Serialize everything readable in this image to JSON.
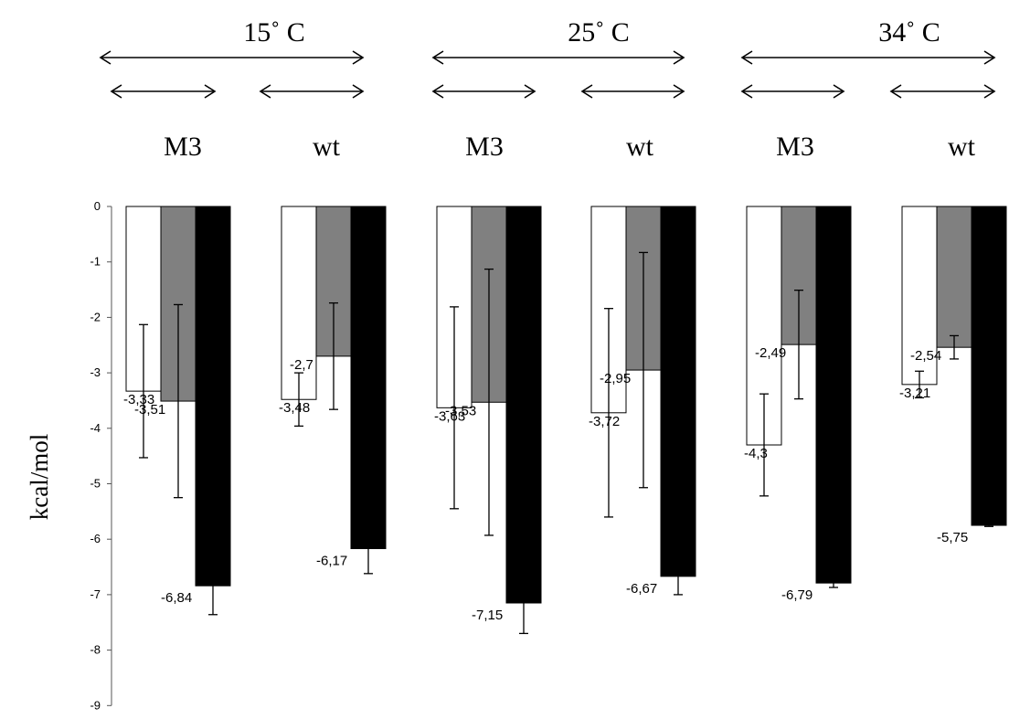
{
  "chart_data": {
    "type": "bar",
    "ylabel": "kcal/mol",
    "ylim": [
      -9,
      0
    ],
    "yticks": [
      "0",
      "-1",
      "-2",
      "-3",
      "-4",
      "-5",
      "-6",
      "-7",
      "-8",
      "-9"
    ],
    "grid": false,
    "temperature_groups": [
      {
        "label": "15˚ C",
        "subgroups": [
          "M3",
          "wt"
        ]
      },
      {
        "label": "25˚ C",
        "subgroups": [
          "M3",
          "wt"
        ]
      },
      {
        "label": "34˚ C",
        "subgroups": [
          "M3",
          "wt"
        ]
      }
    ],
    "categories": [
      "M3",
      "wt",
      "M3",
      "wt",
      "M3",
      "wt"
    ],
    "series": [
      {
        "color": "#ffffff",
        "values": [
          -3.33,
          -3.48,
          -3.63,
          -3.72,
          -4.3,
          -3.21
        ],
        "labels": [
          "-3,33",
          "-3,48",
          "-3,63",
          "-3,72",
          "-4,3",
          "-3,21"
        ],
        "error": [
          1.2,
          0.48,
          1.82,
          1.88,
          0.92,
          0.24
        ]
      },
      {
        "color": "#808080",
        "values": [
          -3.51,
          -2.7,
          -3.53,
          -2.95,
          -2.49,
          -2.54
        ],
        "labels": [
          "-3,51",
          "-2,7",
          "-3,53",
          "-2,95",
          "-2,49",
          "-2,54"
        ],
        "error": [
          1.74,
          0.96,
          2.4,
          2.12,
          0.98,
          0.21
        ]
      },
      {
        "color": "#000000",
        "values": [
          -6.84,
          -6.17,
          -7.15,
          -6.67,
          -6.79,
          -5.75
        ],
        "labels": [
          "-6,84",
          "-6,17",
          "-7,15",
          "-6,67",
          "-6,79",
          "-5,75"
        ],
        "error": [
          0.52,
          0.45,
          0.55,
          0.33,
          0.08,
          0.02
        ]
      }
    ]
  }
}
